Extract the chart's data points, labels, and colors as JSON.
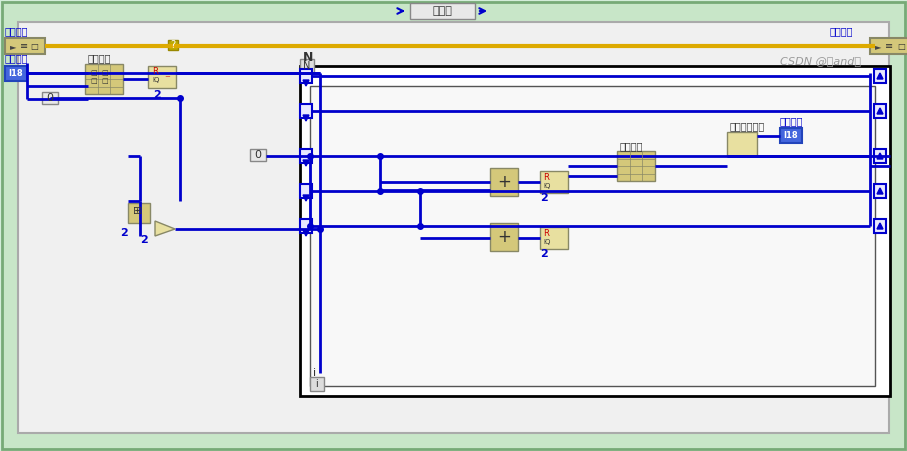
{
  "bg_outer": "#d4edda",
  "bg_inner": "#ffffff",
  "border_color": "#88aa88",
  "blue": "#0000cc",
  "dark_blue": "#0000aa",
  "gold": "#c8a000",
  "box_fill": "#d4c87a",
  "box_fill2": "#e8e0a0",
  "text_color": "#0000cc",
  "label_color": "#0000cc",
  "title": "无错误",
  "watermark": "CSDN @羊and船",
  "labels": {
    "input_data": "输入数据",
    "create_array": "创建数组",
    "error_in": "错误输入",
    "error_out": "错误输出",
    "encoded_data": "编码数据",
    "reshape": "重排数组维数",
    "create_array2": "创建数组",
    "N_label": "N",
    "i_label": "i",
    "zero1": "0",
    "zero2": "0",
    "two1": "2",
    "two2": "2",
    "two3": "2",
    "two4": "2",
    "two5": "2"
  }
}
